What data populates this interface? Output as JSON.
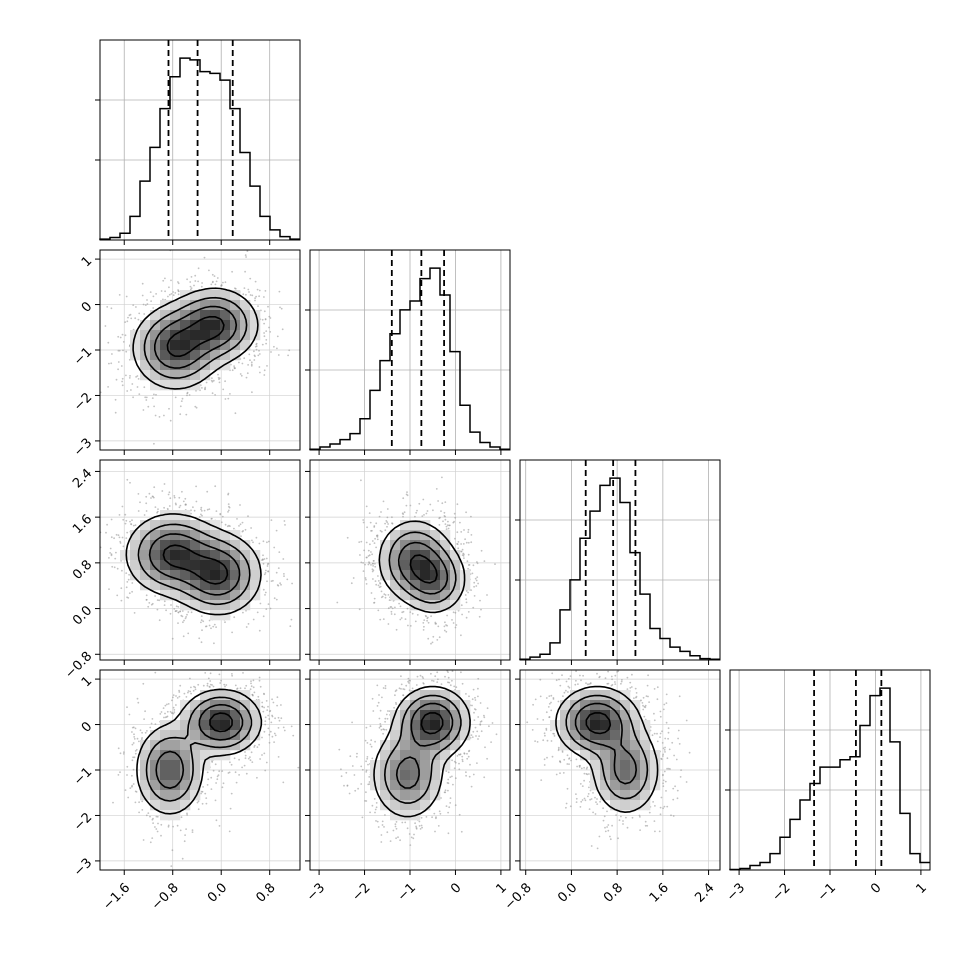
{
  "chart_data": {
    "type": "corner",
    "description_note": "4-parameter corner plot: diagonal 1D histograms with dashed quantile lines, lower triangle 2D density contours over scatter",
    "params": 4,
    "ranges": [
      [
        -2.0,
        1.3
      ],
      [
        -3.2,
        1.2
      ],
      [
        -0.9,
        2.6
      ],
      [
        -3.2,
        1.2
      ]
    ],
    "ticks": [
      [
        -1.6,
        -0.8,
        0.0,
        0.8
      ],
      [
        -3,
        -2,
        -1,
        0,
        1
      ],
      [
        -0.8,
        0.0,
        0.8,
        1.6,
        2.4
      ],
      [
        -3,
        -2,
        -1,
        0,
        1
      ]
    ],
    "tick_labels": [
      [
        "−1.6",
        "−0.8",
        "0.0",
        "0.8"
      ],
      [
        "−3",
        "−2",
        "−1",
        "0",
        "1"
      ],
      [
        "−0.8",
        "0.0",
        "0.8",
        "1.6",
        "2.4"
      ],
      [
        "−3",
        "−2",
        "−1",
        "0",
        "1"
      ]
    ],
    "histograms": [
      {
        "bins": [
          -2.0,
          -1.835,
          -1.67,
          -1.505,
          -1.34,
          -1.175,
          -1.01,
          -0.845,
          -0.68,
          -0.515,
          -0.35,
          -0.185,
          -0.02,
          0.145,
          0.31,
          0.475,
          0.64,
          0.805,
          0.97,
          1.135,
          1.3
        ],
        "counts": [
          0.5,
          1.5,
          4,
          14,
          35,
          55,
          78,
          97,
          108,
          107,
          100,
          99,
          95,
          78,
          52,
          32,
          14,
          6,
          2,
          0.5
        ],
        "quantiles": [
          -0.87,
          -0.39,
          0.19
        ]
      },
      {
        "bins": [
          -3.2,
          -2.98,
          -2.76,
          -2.54,
          -2.32,
          -2.1,
          -1.88,
          -1.66,
          -1.44,
          -1.22,
          -1.0,
          -0.78,
          -0.56,
          -0.34,
          -0.12,
          0.1,
          0.32,
          0.54,
          0.76,
          0.98,
          1.2
        ],
        "counts": [
          0.5,
          2,
          4,
          7,
          11,
          21,
          40,
          60,
          78,
          94,
          100,
          115,
          122,
          104,
          66,
          30,
          12,
          5,
          2,
          0.5
        ],
        "quantiles": [
          -1.4,
          -0.75,
          -0.25
        ]
      },
      {
        "bins": [
          -0.9,
          -0.725,
          -0.55,
          -0.375,
          -0.2,
          -0.025,
          0.15,
          0.325,
          0.5,
          0.675,
          0.85,
          1.025,
          1.2,
          1.375,
          1.55,
          1.725,
          1.9,
          2.075,
          2.25,
          2.425,
          2.6
        ],
        "counts": [
          0.5,
          2,
          4,
          12,
          35,
          56,
          85,
          104,
          122,
          127,
          110,
          75,
          46,
          22,
          15,
          9,
          6,
          3,
          1,
          0.5
        ],
        "quantiles": [
          0.25,
          0.73,
          1.12
        ]
      },
      {
        "bins": [
          -3.2,
          -2.98,
          -2.76,
          -2.54,
          -2.32,
          -2.1,
          -1.88,
          -1.66,
          -1.44,
          -1.22,
          -1.0,
          -0.78,
          -0.56,
          -0.34,
          -0.12,
          0.1,
          0.32,
          0.54,
          0.76,
          0.98,
          1.2
        ],
        "counts": [
          0.3,
          1,
          3,
          5,
          11,
          22,
          34,
          47,
          58,
          69,
          69,
          74,
          76,
          97,
          117,
          122,
          86,
          38,
          11,
          5
        ],
        "quantiles": [
          -1.35,
          -0.43,
          0.13
        ]
      }
    ],
    "density_modes": {
      "1_0": [
        {
          "x": -0.75,
          "y": -0.95,
          "sx": 0.35,
          "sy": 0.45,
          "w": 1.0
        },
        {
          "x": -0.1,
          "y": -0.45,
          "sx": 0.35,
          "sy": 0.4,
          "w": 1.0
        }
      ],
      "2_0": [
        {
          "x": -0.8,
          "y": 0.95,
          "sx": 0.38,
          "sy": 0.35,
          "w": 1.0
        },
        {
          "x": -0.05,
          "y": 0.6,
          "sx": 0.35,
          "sy": 0.35,
          "w": 1.0
        }
      ],
      "2_1": [
        {
          "x": -0.9,
          "y": 0.85,
          "sx": 0.4,
          "sy": 0.35,
          "w": 1.0
        },
        {
          "x": -0.45,
          "y": 0.5,
          "sx": 0.35,
          "sy": 0.3,
          "w": 0.8
        }
      ],
      "3_0": [
        {
          "x": 0.0,
          "y": 0.05,
          "sx": 0.32,
          "sy": 0.35,
          "w": 1.2
        },
        {
          "x": -0.85,
          "y": -1.0,
          "sx": 0.28,
          "sy": 0.5,
          "w": 0.9
        }
      ],
      "3_1": [
        {
          "x": -0.5,
          "y": 0.05,
          "sx": 0.4,
          "sy": 0.38,
          "w": 1.2
        },
        {
          "x": -1.05,
          "y": -1.1,
          "sx": 0.4,
          "sy": 0.5,
          "w": 0.8
        }
      ],
      "3_2": [
        {
          "x": 0.45,
          "y": 0.05,
          "sx": 0.35,
          "sy": 0.38,
          "w": 1.2
        },
        {
          "x": 0.95,
          "y": -1.0,
          "sx": 0.3,
          "sy": 0.5,
          "w": 0.8
        }
      ]
    }
  }
}
